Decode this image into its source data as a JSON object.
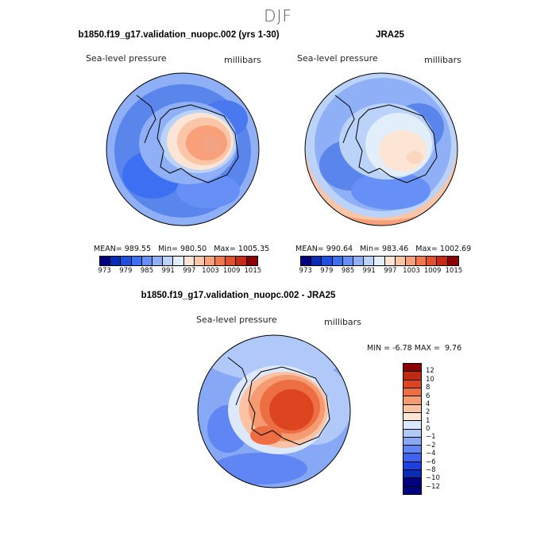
{
  "figure": {
    "season": "DJF",
    "panels": [
      {
        "title": "b1850.f19_g17.validation_nuopc.002 (yrs 1-30)",
        "variable": "Sea-level pressure",
        "units": "millibars",
        "stats": {
          "mean_label": "MEAN=",
          "mean": "989.55",
          "min_label": "Min=",
          "min": "980.50",
          "max_label": "Max=",
          "max": "1005.35"
        }
      },
      {
        "title": "JRA25",
        "variable": "Sea-level pressure",
        "units": "millibars",
        "stats": {
          "mean_label": "MEAN=",
          "mean": "990.64",
          "min_label": "Min=",
          "min": "983.46",
          "max_label": "Max=",
          "max": "1002.69"
        }
      }
    ],
    "diff_panel": {
      "title": "b1850.f19_g17.validation_nuopc.002 - JRA25",
      "variable": "Sea-level pressure",
      "units": "millibars",
      "min_label": "MIN =",
      "min": "-6.78",
      "max_label": "MAX =",
      "max": "9.76"
    },
    "colorbar_top": {
      "colors": [
        "#000080",
        "#0a2bb5",
        "#1f4fe0",
        "#3d6ff2",
        "#6690f5",
        "#8fb0f7",
        "#bcd3f9",
        "#e3eefb",
        "#fde5d6",
        "#fbc6a8",
        "#f7a07a",
        "#f1774f",
        "#e2502d",
        "#c72a17",
        "#8b0000"
      ],
      "tick_labels": [
        "973",
        "979",
        "985",
        "991",
        "997",
        "1003",
        "1009",
        "1015"
      ]
    },
    "colorbar_diff": {
      "colors": [
        "#000080",
        "#0a2bb5",
        "#1f3fe0",
        "#3d63f0",
        "#5f86f2",
        "#86a8f5",
        "#b1c9f8",
        "#dde9fb",
        "#fde5d6",
        "#fbc3a3",
        "#f59b72",
        "#ee6e44",
        "#dd4420",
        "#bf2a12",
        "#8b0000"
      ],
      "tick_labels": [
        "-12",
        "-10",
        "-8",
        "-6",
        "-4",
        "-2",
        "-1",
        "0",
        "1",
        "2",
        "4",
        "6",
        "8",
        "10",
        "12"
      ]
    }
  }
}
